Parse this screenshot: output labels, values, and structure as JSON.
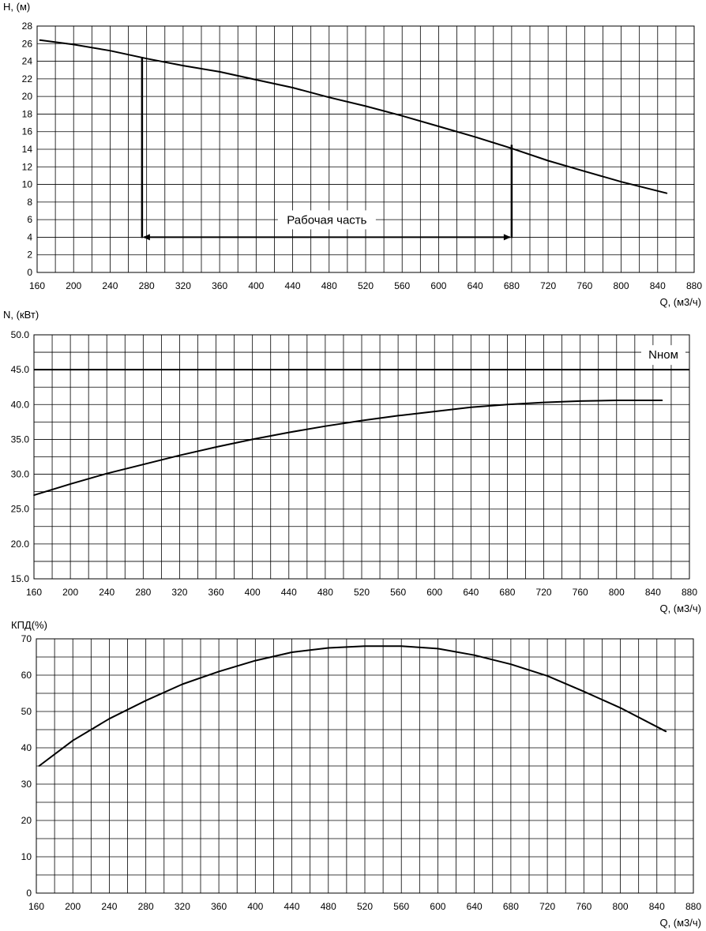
{
  "chart_data": [
    {
      "type": "line",
      "ylabel": "H, (м)",
      "xlabel": "Q, (м3/ч)",
      "xlim": [
        160,
        880
      ],
      "ylim": [
        0,
        28
      ],
      "x_ticks": [
        160,
        200,
        240,
        280,
        320,
        360,
        400,
        440,
        480,
        520,
        560,
        600,
        640,
        680,
        720,
        760,
        800,
        840,
        880
      ],
      "y_ticks": [
        0,
        2,
        4,
        6,
        8,
        10,
        12,
        14,
        16,
        18,
        20,
        22,
        24,
        26,
        28
      ],
      "grid": true,
      "series": [
        {
          "x": [
            163,
            200,
            240,
            280,
            320,
            360,
            400,
            440,
            480,
            520,
            560,
            600,
            640,
            680,
            720,
            760,
            800,
            850
          ],
          "values": [
            26.4,
            25.9,
            25.2,
            24.3,
            23.5,
            22.8,
            21.9,
            21.0,
            19.9,
            18.9,
            17.8,
            16.6,
            15.4,
            14.1,
            12.7,
            11.5,
            10.3,
            9.0
          ]
        }
      ],
      "annotations": [
        {
          "text": "Рабочая часть",
          "range": [
            275,
            680
          ],
          "at_y": 4,
          "markers": [
            {
              "x": 275,
              "y_top": 24.5
            },
            {
              "x": 680,
              "y_top": 14.5
            }
          ]
        }
      ]
    },
    {
      "type": "line",
      "ylabel": "N, (кВт)",
      "xlabel": "Q, (м3/ч)",
      "xlim": [
        160,
        880
      ],
      "ylim": [
        15,
        50
      ],
      "x_ticks": [
        160,
        200,
        240,
        280,
        320,
        360,
        400,
        440,
        480,
        520,
        560,
        600,
        640,
        680,
        720,
        760,
        800,
        840,
        880
      ],
      "y_ticks": [
        "15.0",
        "20.0",
        "25.0",
        "30.0",
        "35.0",
        "40.0",
        "45.0",
        "50.0"
      ],
      "grid": true,
      "series": [
        {
          "x": [
            160,
            200,
            240,
            280,
            320,
            360,
            400,
            440,
            480,
            520,
            560,
            600,
            640,
            680,
            720,
            760,
            800,
            850
          ],
          "values": [
            27.0,
            28.6,
            30.1,
            31.4,
            32.7,
            33.9,
            35.0,
            36.0,
            36.9,
            37.7,
            38.4,
            39.0,
            39.6,
            40.0,
            40.3,
            40.5,
            40.6,
            40.6
          ]
        }
      ],
      "reference_line": {
        "label": "Nном",
        "y": 45
      }
    },
    {
      "type": "line",
      "ylabel": "КПД(%)",
      "xlabel": "Q, (м3/ч)",
      "xlim": [
        160,
        880
      ],
      "ylim": [
        0,
        70
      ],
      "x_ticks": [
        160,
        200,
        240,
        280,
        320,
        360,
        400,
        440,
        480,
        520,
        560,
        600,
        640,
        680,
        720,
        760,
        800,
        840,
        880
      ],
      "y_ticks": [
        0,
        10,
        20,
        30,
        40,
        50,
        60,
        70
      ],
      "grid": true,
      "series": [
        {
          "x": [
            163,
            200,
            240,
            280,
            320,
            360,
            400,
            440,
            480,
            520,
            560,
            600,
            640,
            680,
            720,
            760,
            800,
            850
          ],
          "values": [
            35.0,
            42.0,
            48.0,
            53.0,
            57.5,
            61.0,
            64.0,
            66.3,
            67.5,
            68.0,
            68.0,
            67.3,
            65.5,
            63.0,
            59.8,
            55.5,
            51.0,
            44.5
          ]
        }
      ]
    }
  ]
}
